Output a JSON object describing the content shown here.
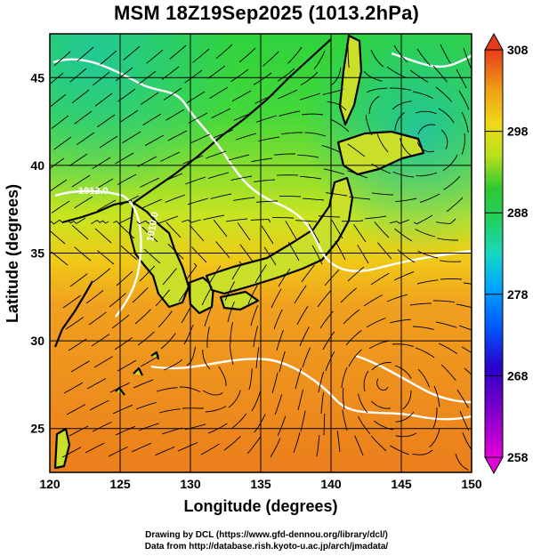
{
  "title": "MSM 18Z19Sep2025 (1013.2hPa)",
  "map": {
    "xlabel": "Longitude (degrees)",
    "ylabel": "Latitude  (degrees)",
    "xlim": [
      120,
      150
    ],
    "ylim": [
      22.5,
      47.5
    ],
    "xticks": [
      120,
      125,
      130,
      135,
      140,
      145,
      150
    ],
    "yticks": [
      25,
      30,
      35,
      40,
      45
    ],
    "grid": true,
    "contour_labels": [
      "1012.0",
      "1010.0"
    ],
    "field": "temperature shading with streamlines"
  },
  "colorbar": {
    "min": 258,
    "max": 308,
    "ticks": [
      308,
      298,
      288,
      278,
      268,
      258
    ],
    "colors": [
      "#e300d8",
      "#2b00c8",
      "#0058ff",
      "#00b4ff",
      "#19d7c2",
      "#28c95a",
      "#2fc832",
      "#7dd62a",
      "#e8e418",
      "#f0b010",
      "#f07a18",
      "#e63c18"
    ]
  },
  "credits": {
    "line1": "Drawing by DCL (https://www.gfd-dennou.org/library/dcl/)",
    "line2": "Data from http://database.rish.kyoto-u.ac.jp/arch/jmadata/"
  }
}
